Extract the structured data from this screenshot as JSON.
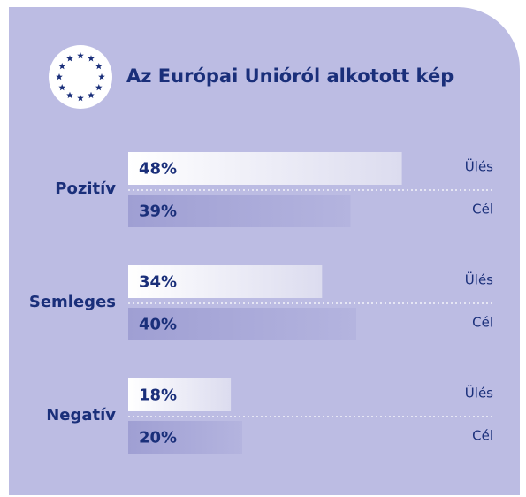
{
  "chart_data": {
    "type": "bar",
    "orientation": "horizontal",
    "title": "Az Európai Unióról alkotott kép",
    "categories": [
      "Pozitív",
      "Semleges",
      "Negatív"
    ],
    "series": [
      {
        "name": "Ülés",
        "color": "#ffffff",
        "values": [
          48,
          34,
          18
        ],
        "value_labels": [
          "48%",
          "34%",
          "18%"
        ]
      },
      {
        "name": "Cél",
        "color": "#a9a9d8",
        "values": [
          39,
          40,
          20
        ],
        "value_labels": [
          "39%",
          "40%",
          "20%"
        ]
      }
    ]
  }
}
